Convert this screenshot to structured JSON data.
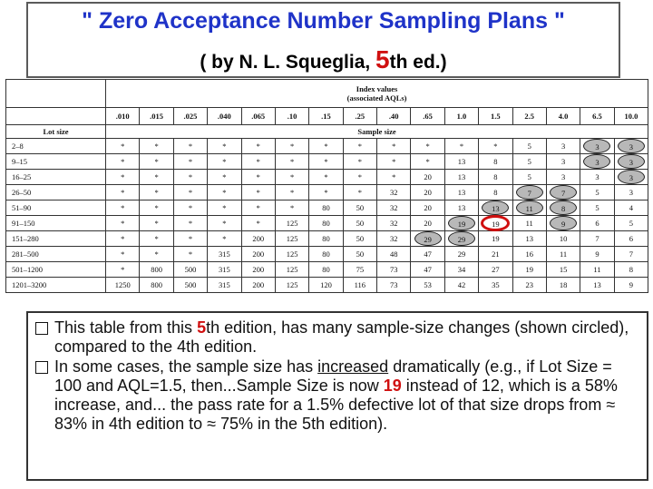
{
  "title": "\" Zero Acceptance Number Sampling Plans \"",
  "subtitle": {
    "pre": "( by N. L. Squeglia, ",
    "edition": "5",
    "post": "th ed.)"
  },
  "table": {
    "index_header_line1": "Index values",
    "index_header_line2": "(associated AQLs)",
    "aql_values": [
      ".010",
      ".015",
      ".025",
      ".040",
      ".065",
      ".10",
      ".15",
      ".25",
      ".40",
      ".65",
      "1.0",
      "1.5",
      "2.5",
      "4.0",
      "6.5",
      "10.0"
    ],
    "lot_size_label": "Lot size",
    "sample_size_label": "Sample size",
    "rows": [
      {
        "lot": "2–8",
        "cells": [
          "*",
          "*",
          "*",
          "*",
          "*",
          "*",
          "*",
          "*",
          "*",
          "*",
          "*",
          "*",
          "5",
          "3",
          "3",
          "3"
        ]
      },
      {
        "lot": "9–15",
        "cells": [
          "*",
          "*",
          "*",
          "*",
          "*",
          "*",
          "*",
          "*",
          "*",
          "*",
          "13",
          "8",
          "5",
          "3",
          "3",
          "3"
        ]
      },
      {
        "lot": "16–25",
        "cells": [
          "*",
          "*",
          "*",
          "*",
          "*",
          "*",
          "*",
          "*",
          "*",
          "20",
          "13",
          "8",
          "5",
          "3",
          "3",
          "3"
        ]
      },
      {
        "lot": "26–50",
        "cells": [
          "*",
          "*",
          "*",
          "*",
          "*",
          "*",
          "*",
          "*",
          "32",
          "20",
          "13",
          "8",
          "7",
          "7",
          "5",
          "3"
        ]
      },
      {
        "lot": "51–90",
        "cells": [
          "*",
          "*",
          "*",
          "*",
          "*",
          "*",
          "80",
          "50",
          "32",
          "20",
          "13",
          "13",
          "11",
          "8",
          "5",
          "4"
        ]
      },
      {
        "lot": "91–150",
        "cells": [
          "*",
          "*",
          "*",
          "*",
          "*",
          "125",
          "80",
          "50",
          "32",
          "20",
          "19",
          "19",
          "11",
          "9",
          "6",
          "5"
        ]
      },
      {
        "lot": "151–280",
        "cells": [
          "*",
          "*",
          "*",
          "*",
          "200",
          "125",
          "80",
          "50",
          "32",
          "29",
          "29",
          "19",
          "13",
          "10",
          "7",
          "6"
        ]
      },
      {
        "lot": "281–500",
        "cells": [
          "*",
          "*",
          "*",
          "315",
          "200",
          "125",
          "80",
          "50",
          "48",
          "47",
          "29",
          "21",
          "16",
          "11",
          "9",
          "7"
        ]
      },
      {
        "lot": "501–1200",
        "cells": [
          "*",
          "800",
          "500",
          "315",
          "200",
          "125",
          "80",
          "75",
          "73",
          "47",
          "34",
          "27",
          "19",
          "15",
          "11",
          "8"
        ]
      },
      {
        "lot": "1201–3200",
        "cells": [
          "1250",
          "800",
          "500",
          "315",
          "200",
          "125",
          "120",
          "116",
          "73",
          "53",
          "42",
          "35",
          "23",
          "18",
          "13",
          "9"
        ]
      }
    ]
  },
  "notes": {
    "b1_a": "This table from this ",
    "b1_five": "5",
    "b1_b": "th edition, has many sample-size changes (shown circled), compared to the 4th edition.",
    "b2_a": "In some cases, the sample size has ",
    "b2_ul": "increased",
    "b2_b": " dramatically (e.g., if Lot Size = 100 and AQL=1.5, then...Sample Size is now ",
    "b2_19": "19",
    "b2_c": " instead of 12, which is a 58% increase, and... the pass rate for a 1.5% defective lot of that size drops from ≈ 83% in 4th edition to ≈ 75% in the 5th edition)."
  },
  "colors": {
    "title_blue": "#1f33c8",
    "accent_red": "#d01010",
    "circle_fill": "#b8b8b8"
  }
}
